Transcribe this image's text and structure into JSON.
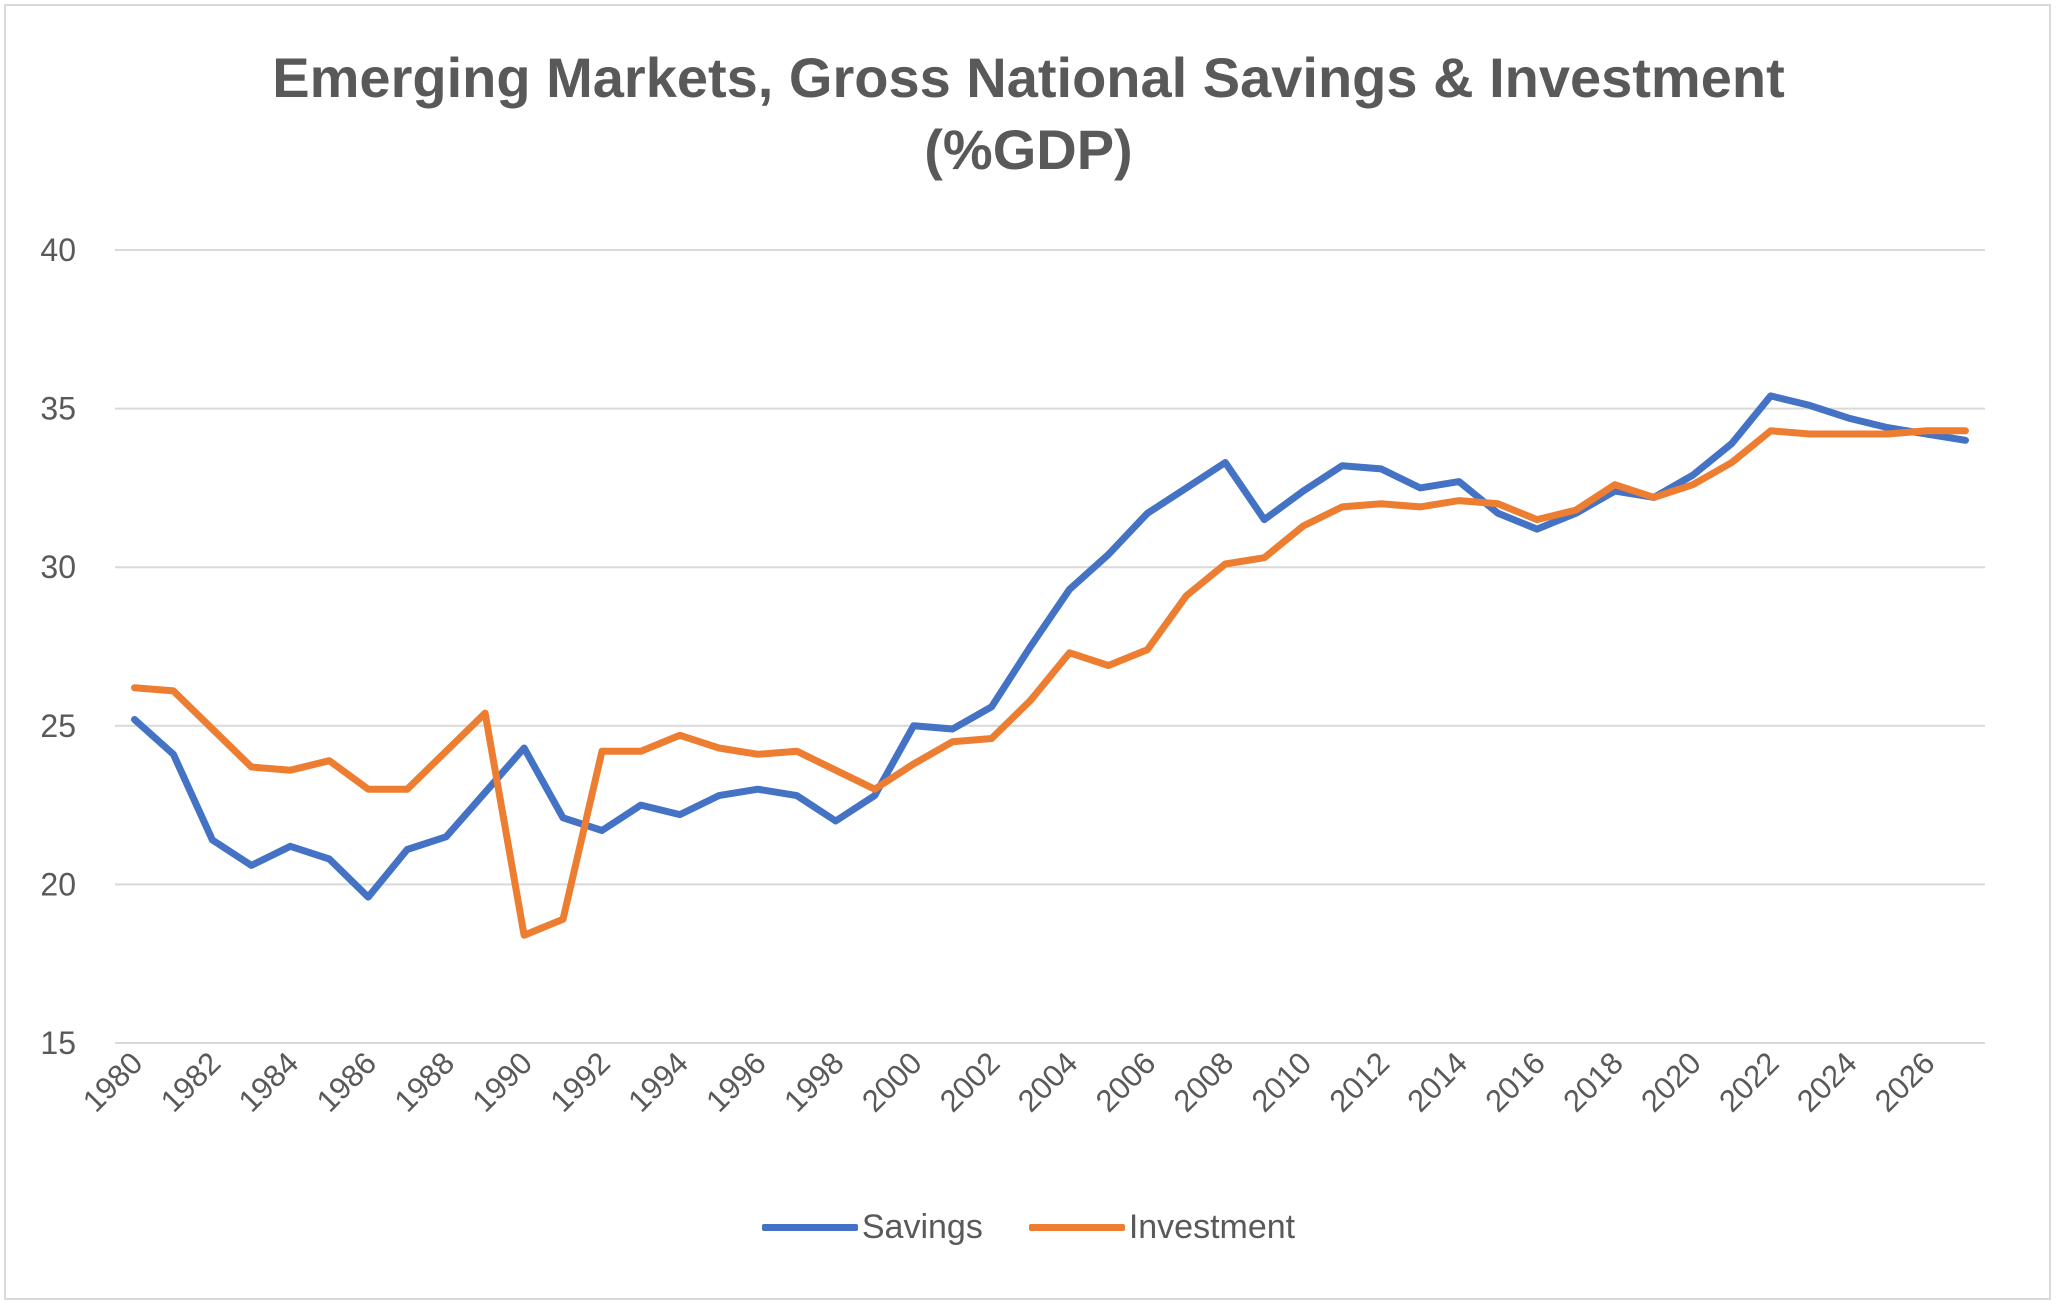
{
  "chart_data": {
    "type": "line",
    "title_line1": "Emerging Markets, Gross National Savings & Investment",
    "title_line2": "(%GDP)",
    "xlabel": "",
    "ylabel": "",
    "ylim": [
      15,
      40
    ],
    "yticks": [
      15,
      20,
      25,
      30,
      35,
      40
    ],
    "grid": true,
    "legend_position": "bottom",
    "x": [
      1980,
      1981,
      1982,
      1983,
      1984,
      1985,
      1986,
      1987,
      1988,
      1989,
      1990,
      1991,
      1992,
      1993,
      1994,
      1995,
      1996,
      1997,
      1998,
      1999,
      2000,
      2001,
      2002,
      2003,
      2004,
      2005,
      2006,
      2007,
      2008,
      2009,
      2010,
      2011,
      2012,
      2013,
      2014,
      2015,
      2016,
      2017,
      2018,
      2019,
      2020,
      2021,
      2022,
      2023,
      2024,
      2025,
      2026,
      2027
    ],
    "xtick_labels": [
      "1980",
      "1982",
      "1984",
      "1986",
      "1988",
      "1990",
      "1992",
      "1994",
      "1996",
      "1998",
      "2000",
      "2002",
      "2004",
      "2006",
      "2008",
      "2010",
      "2012",
      "2014",
      "2016",
      "2018",
      "2020",
      "2022",
      "2024",
      "2026"
    ],
    "series": [
      {
        "name": "Savings",
        "color": "#4472c4",
        "values": [
          25.2,
          24.1,
          21.4,
          20.6,
          21.2,
          20.8,
          19.6,
          21.1,
          21.5,
          22.9,
          24.3,
          22.1,
          21.7,
          22.5,
          22.2,
          22.8,
          23.0,
          22.8,
          22.0,
          22.8,
          25.0,
          24.9,
          25.6,
          27.5,
          29.3,
          30.4,
          31.7,
          32.5,
          33.3,
          31.5,
          32.4,
          33.2,
          33.1,
          32.5,
          32.7,
          31.7,
          31.2,
          31.7,
          32.4,
          32.2,
          32.9,
          33.9,
          35.4,
          35.1,
          34.7,
          34.4,
          34.2,
          34.0
        ]
      },
      {
        "name": "Investment",
        "color": "#ed7d31",
        "values": [
          26.2,
          26.1,
          24.9,
          23.7,
          23.6,
          23.9,
          23.0,
          23.0,
          24.2,
          25.4,
          18.4,
          18.9,
          24.2,
          24.2,
          24.7,
          24.3,
          24.1,
          24.2,
          23.6,
          23.0,
          23.8,
          24.5,
          24.6,
          25.8,
          27.3,
          26.9,
          27.4,
          29.1,
          30.1,
          30.3,
          31.3,
          31.9,
          32.0,
          31.9,
          32.1,
          32.0,
          31.5,
          31.8,
          32.6,
          32.2,
          32.6,
          33.3,
          34.3,
          34.2,
          34.2,
          34.2,
          34.3,
          34.3
        ]
      }
    ]
  }
}
